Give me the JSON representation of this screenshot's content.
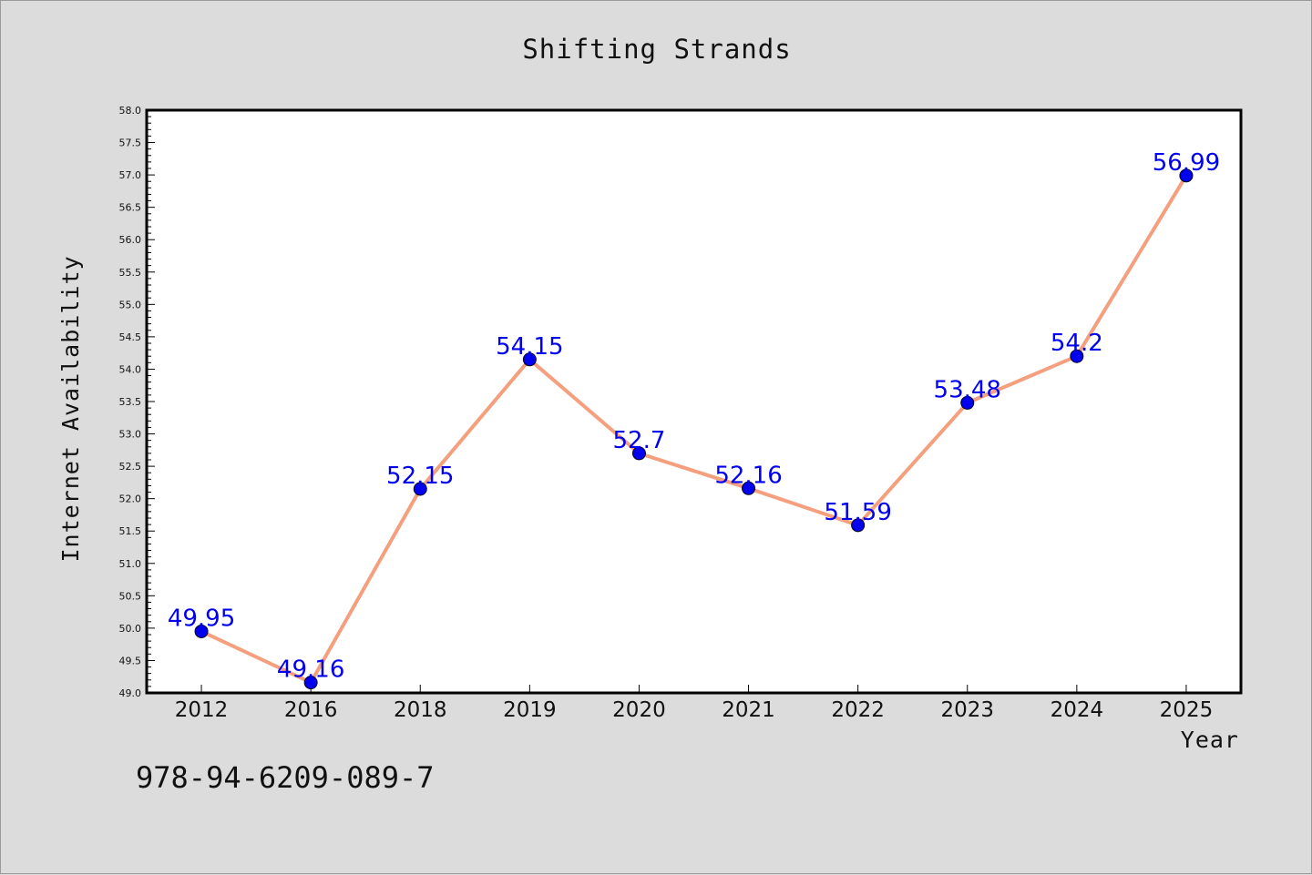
{
  "colors": {
    "background": "#dcdcdc",
    "plot_background": "#ffffff",
    "line": "#f4a07e",
    "marker": "#0000ee",
    "data_label": "#0000ee"
  },
  "footnote": "978-94-6209-089-7",
  "chart_data": {
    "type": "line",
    "title": "Shifting Strands",
    "xlabel": "Year",
    "ylabel": "Internet Availability",
    "categories": [
      "2012",
      "2016",
      "2018",
      "2019",
      "2020",
      "2021",
      "2022",
      "2023",
      "2024",
      "2025"
    ],
    "series": [
      {
        "values": [
          49.95,
          49.16,
          52.15,
          54.15,
          52.7,
          52.16,
          51.59,
          53.48,
          54.2,
          56.99
        ],
        "data_labels": [
          "49.95",
          "49.16",
          "52.15",
          "54.15",
          "52.7",
          "52.16",
          "51.59",
          "53.48",
          "54.2",
          "56.99"
        ]
      }
    ],
    "ylim": [
      49.0,
      58.0
    ],
    "yticks": [
      "49.0",
      "49.5",
      "50.0",
      "50.5",
      "51.0",
      "51.5",
      "52.0",
      "52.5",
      "53.0",
      "53.5",
      "54.0",
      "54.5",
      "55.0",
      "55.5",
      "56.0",
      "56.5",
      "57.0",
      "57.5",
      "58.0"
    ],
    "grid": false,
    "legend": "none"
  }
}
